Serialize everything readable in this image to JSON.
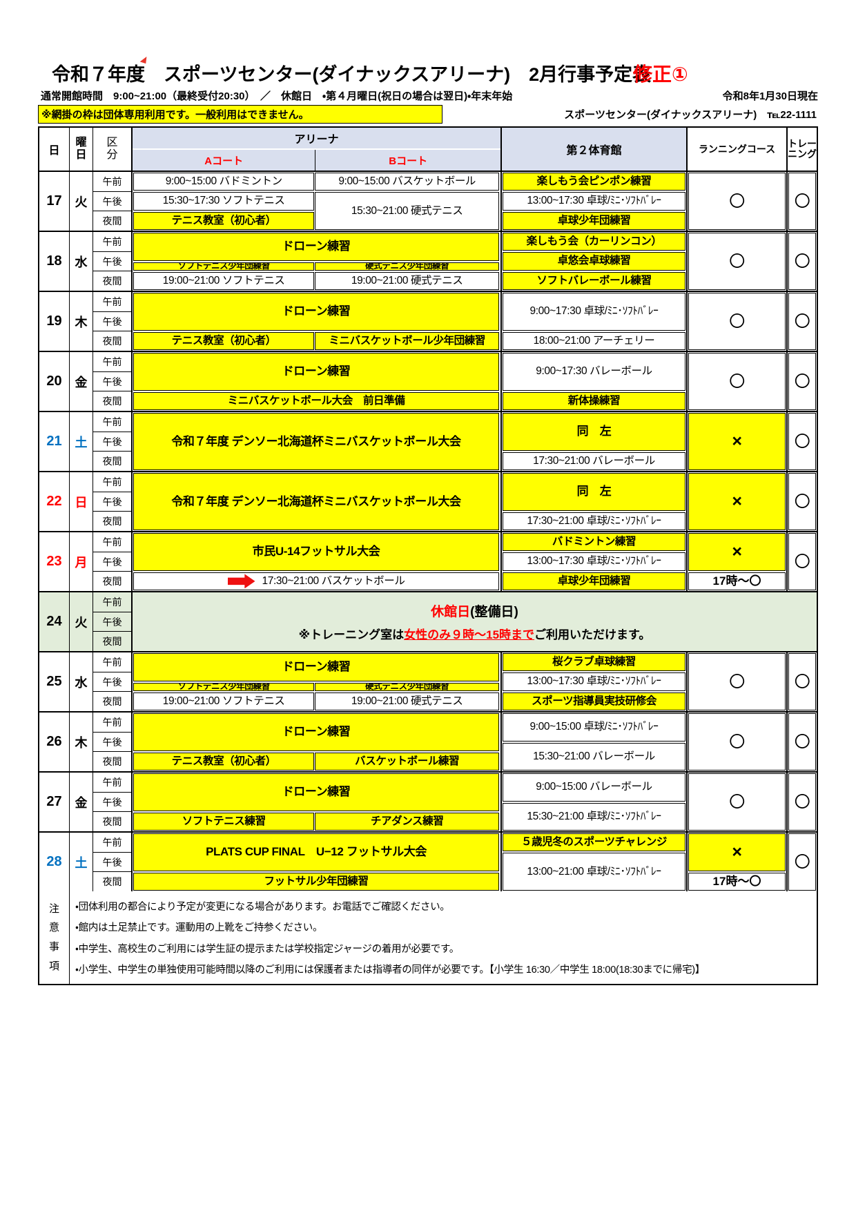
{
  "header": {
    "title": "令和７年度　スポーツセンター(ダイナックスアリーナ)　2月行事予定表",
    "revision": "修正①",
    "hours_line": "通常開館時間　9:00~21:00（最終受付20:30）　／　休館日　・第４月曜日(祝日の場合は翌日)・年末年始",
    "as_of": "令和8年1月30日現在",
    "notice": "※網掛の枠は団体専用利用です。一般利用はできません。",
    "contact": "スポーツセンター(ダイナックスアリーナ)　℡22-1111"
  },
  "table": {
    "col_headers": {
      "day": "日",
      "weekday": "曜\n日",
      "kubun": "区\n分",
      "arena": "アリーナ",
      "court_a": "Aコート",
      "court_b": "Bコート",
      "gym2": "第２体育館",
      "running": "ランニングコース",
      "training": "トレー\nニング"
    },
    "kubun_labels": [
      "午前",
      "午後",
      "夜間"
    ],
    "rows": [
      {
        "day": "17",
        "weekday": "火",
        "color": "#000000",
        "arena": [
          {
            "col": "A",
            "r": 0,
            "s": 2,
            "text": "9:00~15:00 バドミントン",
            "bg": "w"
          },
          {
            "col": "B",
            "r": 0,
            "s": 2,
            "text": "9:00~15:00 バスケットボール",
            "bg": "w"
          },
          {
            "col": "A",
            "r": 2,
            "s": 2,
            "text": "15:30~17:30 ソフトテニス",
            "bg": "w"
          },
          {
            "col": "B",
            "r": 2,
            "s": 4,
            "text": "15:30~21:00 硬式テニス",
            "bg": "w"
          },
          {
            "col": "A",
            "r": 4,
            "s": 2,
            "text": "テニス教室（初心者）",
            "bg": "y"
          }
        ],
        "gym2": [
          {
            "r": 0,
            "s": 2,
            "text": "楽しもう会ピンポン練習",
            "bg": "y"
          },
          {
            "r": 2,
            "s": 2,
            "text": "13:00~17:30 卓球/ﾐﾆ･ｿﾌﾄﾊﾞﾚｰ",
            "bg": "w"
          },
          {
            "r": 4,
            "s": 2,
            "text": "卓球少年団練習",
            "bg": "y"
          }
        ],
        "run": [
          {
            "r": 0,
            "s": 6,
            "text": "〇",
            "bg": "w",
            "cls": "sym"
          }
        ],
        "train": [
          {
            "r": 0,
            "s": 6,
            "text": "〇",
            "bg": "w",
            "cls": "sym"
          }
        ]
      },
      {
        "day": "18",
        "weekday": "水",
        "color": "#000000",
        "arena": [
          {
            "col": "AB",
            "r": 0,
            "s": 3,
            "text": "ドローン練習",
            "bg": "y",
            "big": true
          },
          {
            "col": "A",
            "r": 3,
            "s": 1,
            "text": "ソフトテニス少年団練習",
            "bg": "y",
            "small": true
          },
          {
            "col": "B",
            "r": 3,
            "s": 1,
            "text": "硬式テニス少年団練習",
            "bg": "y",
            "small": true
          },
          {
            "col": "A",
            "r": 4,
            "s": 2,
            "text": "19:00~21:00 ソフトテニス",
            "bg": "w"
          },
          {
            "col": "B",
            "r": 4,
            "s": 2,
            "text": "19:00~21:00 硬式テニス",
            "bg": "w"
          }
        ],
        "gym2": [
          {
            "r": 0,
            "s": 2,
            "text": "楽しもう会（カーリンコン）",
            "bg": "y"
          },
          {
            "r": 2,
            "s": 2,
            "text": "卓悠会卓球練習",
            "bg": "y"
          },
          {
            "r": 4,
            "s": 2,
            "text": "ソフトバレーボール練習",
            "bg": "y"
          }
        ],
        "run": [
          {
            "r": 0,
            "s": 6,
            "text": "〇",
            "bg": "w",
            "cls": "sym"
          }
        ],
        "train": [
          {
            "r": 0,
            "s": 6,
            "text": "〇",
            "bg": "w",
            "cls": "sym"
          }
        ]
      },
      {
        "day": "19",
        "weekday": "木",
        "color": "#000000",
        "arena": [
          {
            "col": "AB",
            "r": 0,
            "s": 4,
            "text": "ドローン練習",
            "bg": "y",
            "big": true
          },
          {
            "col": "A",
            "r": 4,
            "s": 2,
            "text": "テニス教室（初心者）",
            "bg": "y"
          },
          {
            "col": "B",
            "r": 4,
            "s": 2,
            "text": "ミニバスケットボール少年団練習",
            "bg": "y"
          }
        ],
        "gym2": [
          {
            "r": 0,
            "s": 4,
            "text": "9:00~17:30 卓球/ﾐﾆ･ｿﾌﾄﾊﾞﾚｰ",
            "bg": "w"
          },
          {
            "r": 4,
            "s": 2,
            "text": "18:00~21:00 アーチェリー",
            "bg": "w"
          }
        ],
        "run": [
          {
            "r": 0,
            "s": 6,
            "text": "〇",
            "bg": "w",
            "cls": "sym"
          }
        ],
        "train": [
          {
            "r": 0,
            "s": 6,
            "text": "〇",
            "bg": "w",
            "cls": "sym"
          }
        ]
      },
      {
        "day": "20",
        "weekday": "金",
        "color": "#000000",
        "arena": [
          {
            "col": "AB",
            "r": 0,
            "s": 4,
            "text": "ドローン練習",
            "bg": "y",
            "big": true
          },
          {
            "col": "AB",
            "r": 4,
            "s": 2,
            "text": "ミニバスケットボール大会　前日準備",
            "bg": "y"
          }
        ],
        "gym2": [
          {
            "r": 0,
            "s": 4,
            "text": "9:00~17:30 バレーボール",
            "bg": "w"
          },
          {
            "r": 4,
            "s": 2,
            "text": "新体操練習",
            "bg": "y"
          }
        ],
        "run": [
          {
            "r": 0,
            "s": 6,
            "text": "〇",
            "bg": "w",
            "cls": "sym"
          }
        ],
        "train": [
          {
            "r": 0,
            "s": 6,
            "text": "〇",
            "bg": "w",
            "cls": "sym"
          }
        ]
      },
      {
        "day": "21",
        "weekday": "土",
        "color": "#0070c0",
        "arena": [
          {
            "col": "AB",
            "r": 0,
            "s": 6,
            "text": "令和７年度 デンソー北海道杯ミニバスケットボール大会",
            "bg": "y",
            "big": true
          }
        ],
        "gym2": [
          {
            "r": 0,
            "s": 4,
            "text": "同　左",
            "bg": "y",
            "big": true
          },
          {
            "r": 4,
            "s": 2,
            "text": "17:30~21:00 バレーボール",
            "bg": "w"
          }
        ],
        "run": [
          {
            "r": 0,
            "s": 6,
            "text": "×",
            "bg": "y",
            "cls": "xmark"
          }
        ],
        "train": [
          {
            "r": 0,
            "s": 6,
            "text": "〇",
            "bg": "w",
            "cls": "sym"
          }
        ]
      },
      {
        "day": "22",
        "weekday": "日",
        "color": "#ff0000",
        "arena": [
          {
            "col": "AB",
            "r": 0,
            "s": 6,
            "text": "令和７年度 デンソー北海道杯ミニバスケットボール大会",
            "bg": "y",
            "big": true
          }
        ],
        "gym2": [
          {
            "r": 0,
            "s": 4,
            "text": "同　左",
            "bg": "y",
            "big": true
          },
          {
            "r": 4,
            "s": 2,
            "text": "17:30~21:00 卓球/ﾐﾆ･ｿﾌﾄﾊﾞﾚｰ",
            "bg": "w"
          }
        ],
        "run": [
          {
            "r": 0,
            "s": 6,
            "text": "×",
            "bg": "y",
            "cls": "xmark"
          }
        ],
        "train": [
          {
            "r": 0,
            "s": 6,
            "text": "〇",
            "bg": "w",
            "cls": "sym"
          }
        ]
      },
      {
        "day": "23",
        "weekday": "月",
        "color": "#ff0000",
        "arena": [
          {
            "col": "AB",
            "r": 0,
            "s": 4,
            "text": "市民U-14フットサル大会",
            "bg": "y",
            "big": true
          },
          {
            "col": "AB",
            "r": 4,
            "s": 2,
            "text": "17:30~21:00 バスケットボール",
            "bg": "w",
            "arrow": true
          }
        ],
        "gym2": [
          {
            "r": 0,
            "s": 2,
            "text": "バドミントン練習",
            "bg": "y"
          },
          {
            "r": 2,
            "s": 2,
            "text": "13:00~17:30 卓球/ﾐﾆ･ｿﾌﾄﾊﾞﾚｰ",
            "bg": "w"
          },
          {
            "r": 4,
            "s": 2,
            "text": "卓球少年団練習",
            "bg": "y"
          }
        ],
        "run": [
          {
            "r": 0,
            "s": 4,
            "text": "×",
            "bg": "y",
            "cls": "xmark"
          },
          {
            "r": 4,
            "s": 2,
            "text": "17時～〇",
            "bg": "w",
            "cls": "t17"
          }
        ],
        "train": [
          {
            "r": 0,
            "s": 6,
            "text": "〇",
            "bg": "w",
            "cls": "sym"
          }
        ]
      },
      {
        "day": "24",
        "weekday": "火",
        "color": "#000000",
        "closed": true,
        "line1": [
          {
            "t": "休館日",
            "c": "red"
          },
          {
            "t": "(整備日)"
          }
        ],
        "line2": [
          {
            "t": "※トレーニング室は"
          },
          {
            "t": "女性のみ９時～15時まで",
            "c": "red",
            "u": true
          },
          {
            "t": "ご利用いただけます。"
          }
        ]
      },
      {
        "day": "25",
        "weekday": "水",
        "color": "#000000",
        "arena": [
          {
            "col": "AB",
            "r": 0,
            "s": 3,
            "text": "ドローン練習",
            "bg": "y",
            "big": true
          },
          {
            "col": "A",
            "r": 3,
            "s": 1,
            "text": "ソフトテニス少年団練習",
            "bg": "y",
            "small": true
          },
          {
            "col": "B",
            "r": 3,
            "s": 1,
            "text": "硬式テニス少年団練習",
            "bg": "y",
            "small": true
          },
          {
            "col": "A",
            "r": 4,
            "s": 2,
            "text": "19:00~21:00 ソフトテニス",
            "bg": "w"
          },
          {
            "col": "B",
            "r": 4,
            "s": 2,
            "text": "19:00~21:00 硬式テニス",
            "bg": "w"
          }
        ],
        "gym2": [
          {
            "r": 0,
            "s": 2,
            "text": "桜クラブ卓球練習",
            "bg": "y"
          },
          {
            "r": 2,
            "s": 2,
            "text": "13:00~17:30 卓球/ﾐﾆ･ｿﾌﾄﾊﾞﾚｰ",
            "bg": "w"
          },
          {
            "r": 4,
            "s": 2,
            "text": "スポーツ指導員実技研修会",
            "bg": "y"
          }
        ],
        "run": [
          {
            "r": 0,
            "s": 6,
            "text": "〇",
            "bg": "w",
            "cls": "sym"
          }
        ],
        "train": [
          {
            "r": 0,
            "s": 6,
            "text": "〇",
            "bg": "w",
            "cls": "sym"
          }
        ]
      },
      {
        "day": "26",
        "weekday": "木",
        "color": "#000000",
        "arena": [
          {
            "col": "AB",
            "r": 0,
            "s": 4,
            "text": "ドローン練習",
            "bg": "y",
            "big": true
          },
          {
            "col": "A",
            "r": 4,
            "s": 2,
            "text": "テニス教室（初心者）",
            "bg": "y"
          },
          {
            "col": "B",
            "r": 4,
            "s": 2,
            "text": "バスケットボール練習",
            "bg": "y"
          }
        ],
        "gym2": [
          {
            "r": 0,
            "s": 3,
            "text": "9:00~15:00 卓球/ﾐﾆ･ｿﾌﾄﾊﾞﾚｰ",
            "bg": "w"
          },
          {
            "r": 3,
            "s": 3,
            "text": "15:30~21:00 バレーボール",
            "bg": "w"
          }
        ],
        "run": [
          {
            "r": 0,
            "s": 6,
            "text": "〇",
            "bg": "w",
            "cls": "sym"
          }
        ],
        "train": [
          {
            "r": 0,
            "s": 6,
            "text": "〇",
            "bg": "w",
            "cls": "sym"
          }
        ]
      },
      {
        "day": "27",
        "weekday": "金",
        "color": "#000000",
        "arena": [
          {
            "col": "AB",
            "r": 0,
            "s": 4,
            "text": "ドローン練習",
            "bg": "y",
            "big": true
          },
          {
            "col": "A",
            "r": 4,
            "s": 2,
            "text": "ソフトテニス練習",
            "bg": "y"
          },
          {
            "col": "B",
            "r": 4,
            "s": 2,
            "text": "チアダンス練習",
            "bg": "y"
          }
        ],
        "gym2": [
          {
            "r": 0,
            "s": 3,
            "text": "9:00~15:00 バレーボール",
            "bg": "w"
          },
          {
            "r": 3,
            "s": 3,
            "text": "15:30~21:00 卓球/ﾐﾆ･ｿﾌﾄﾊﾞﾚｰ",
            "bg": "w"
          }
        ],
        "run": [
          {
            "r": 0,
            "s": 6,
            "text": "〇",
            "bg": "w",
            "cls": "sym"
          }
        ],
        "train": [
          {
            "r": 0,
            "s": 6,
            "text": "〇",
            "bg": "w",
            "cls": "sym"
          }
        ]
      },
      {
        "day": "28",
        "weekday": "土",
        "color": "#0070c0",
        "arena": [
          {
            "col": "AB",
            "r": 0,
            "s": 4,
            "text": "PLATS CUP FINAL　U−12 フットサル大会",
            "bg": "y",
            "big": true
          },
          {
            "col": "AB",
            "r": 4,
            "s": 2,
            "text": "フットサル少年団練習",
            "bg": "y"
          }
        ],
        "gym2": [
          {
            "r": 0,
            "s": 2,
            "text": "５歳児冬のスポーツチャレンジ",
            "bg": "y"
          },
          {
            "r": 2,
            "s": 4,
            "text": "13:00~21:00 卓球/ﾐﾆ･ｿﾌﾄﾊﾞﾚｰ",
            "bg": "w"
          }
        ],
        "run": [
          {
            "r": 0,
            "s": 4,
            "text": "×",
            "bg": "y",
            "cls": "xmark"
          },
          {
            "r": 4,
            "s": 2,
            "text": "17時～〇",
            "bg": "w",
            "cls": "t17"
          }
        ],
        "train": [
          {
            "r": 0,
            "s": 6,
            "text": "〇",
            "bg": "w",
            "cls": "sym"
          }
        ]
      }
    ]
  },
  "notes": {
    "label": "注\n意\n事\n項",
    "lines": [
      "・団体利用の都合により予定が変更になる場合があります。お電話でご確認ください。",
      "・館内は土足禁止です。運動用の上靴をご持参ください。",
      "・中学生、高校生のご利用には学生証の提示または学校指定ジャージの着用が必要です。",
      "・小学生、中学生の単独使用可能時間以降のご利用には保護者または指導者の同伴が必要です。【小学生 16:30／中学生 18:00(18:30までに帰宅)】"
    ]
  },
  "colors": {
    "group_use_yellow": "#ffff00",
    "closed_green": "#e2edda",
    "header_blue": "#d9dfee",
    "saturday_blue": "#0070c0",
    "holiday_red": "#ff0000"
  }
}
